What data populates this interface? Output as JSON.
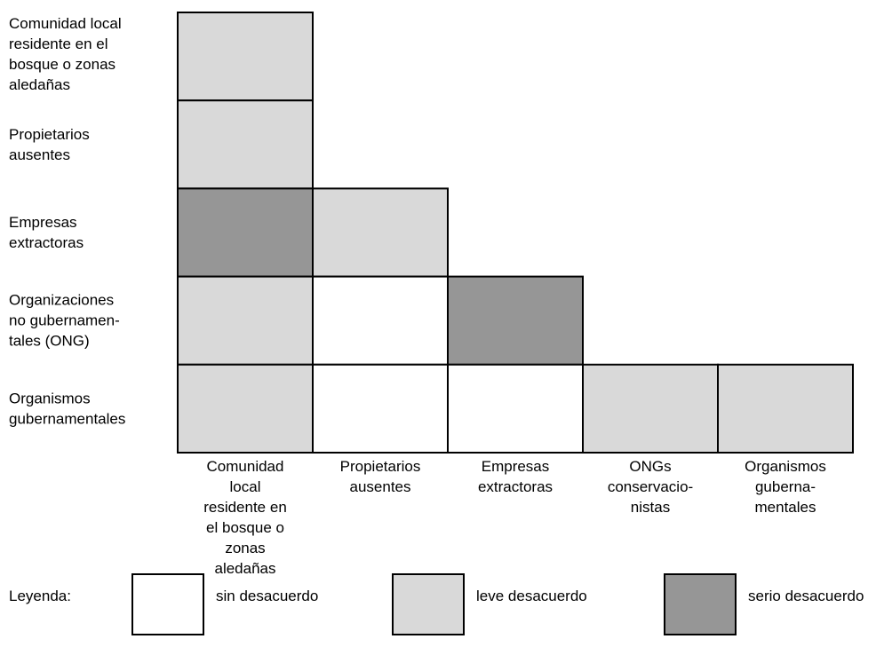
{
  "chart_data": {
    "type": "heatmap",
    "shape": "lower-triangular",
    "rows": [
      [
        "Comunidad local",
        "residente en el",
        "bosque o zonas",
        "aledañas"
      ],
      [
        "Propietarios",
        "ausentes"
      ],
      [
        "Empresas",
        "extractoras"
      ],
      [
        "Organizaciones",
        "no gubernamen-",
        "tales (ONG)"
      ],
      [
        "Organismos",
        "gubernamentales"
      ]
    ],
    "columns": [
      [
        "Comunidad",
        "local",
        "residente en",
        "el bosque o",
        "zonas",
        "aledañas"
      ],
      [
        "Propietarios",
        "ausentes"
      ],
      [
        "Empresas",
        "extractoras"
      ],
      [
        "ONGs",
        "conservacio-",
        "nistas"
      ],
      [
        "Organismos",
        "guberna-",
        "mentales"
      ]
    ],
    "cells": [
      [
        "leve",
        null,
        null,
        null,
        null
      ],
      [
        "leve",
        null,
        null,
        null,
        null
      ],
      [
        "serio",
        "leve",
        null,
        null,
        null
      ],
      [
        "leve",
        "sin",
        "serio",
        null,
        null
      ],
      [
        "leve",
        "sin",
        "sin",
        "leve",
        "leve"
      ]
    ],
    "levels": {
      "sin": {
        "label": "sin desacuerdo",
        "color": "#ffffff"
      },
      "leve": {
        "label": "leve desacuerdo",
        "color": "#d9d9d9"
      },
      "serio": {
        "label": "serio desacuerdo",
        "color": "#969696"
      }
    },
    "legend": {
      "title": "Leyenda:",
      "order": [
        "sin",
        "leve",
        "serio"
      ],
      "placement": "bottom"
    }
  }
}
